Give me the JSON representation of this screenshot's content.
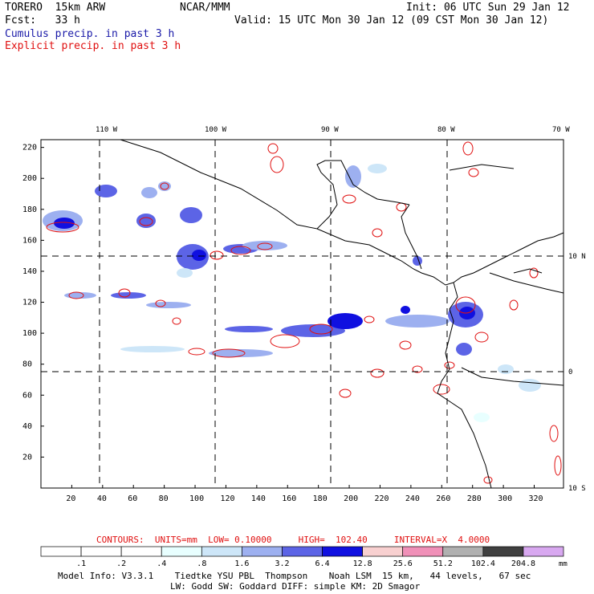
{
  "header": {
    "line1_left": "TORERO  15km ARW",
    "line1_mid": "NCAR/MMM",
    "line1_right": "Init: 06 UTC Sun 29 Jan 12",
    "line2_left": "Fcst:   33 h",
    "line2_right": "Valid: 15 UTC Mon 30 Jan 12 (09 CST Mon 30 Jan 12)",
    "legend_cumulus": "Cumulus precip. in past 3 h",
    "legend_explicit": "Explicit precip. in past 3 h",
    "cumulus_color": "#1a1aa8",
    "explicit_color": "#e01010"
  },
  "map": {
    "lon_labels": [
      "110 W",
      "100 W",
      "90 W",
      "80 W",
      "70 W"
    ],
    "lat_labels_right": [
      "10 N",
      "0",
      "10 S"
    ],
    "y_ticks": [
      "220",
      "200",
      "180",
      "160",
      "140",
      "120",
      "100",
      "80",
      "60",
      "40",
      "20"
    ],
    "x_ticks": [
      "20",
      "40",
      "60",
      "80",
      "100",
      "120",
      "140",
      "160",
      "180",
      "200",
      "220",
      "240",
      "260",
      "280",
      "300",
      "320"
    ]
  },
  "contours_line": {
    "label": "CONTOURS:  UNITS=mm  LOW= 0.10000     HIGH=  102.40     INTERVAL=X  4.0000"
  },
  "colorbar": {
    "labels": [
      ".1",
      ".2",
      ".4",
      ".8",
      "1.6",
      "3.2",
      "6.4",
      "12.8",
      "25.6",
      "51.2",
      "102.4",
      "204.8"
    ],
    "unit": "mm",
    "colors": [
      "#ffffff",
      "#ffffff",
      "#ffffff",
      "#e8ffff",
      "#cde6f8",
      "#9db0f0",
      "#5c64e6",
      "#1010e0",
      "#f8d0d0",
      "#f090b8",
      "#b0b0b0",
      "#404040",
      "#d8a8f0"
    ]
  },
  "footer": {
    "line1": "Model Info: V3.3.1    Tiedtke YSU PBL  Thompson    Noah LSM  15 km,   44 levels,   67 sec",
    "line2": "LW: Godd SW: Goddard DIFF: simple KM: 2D Smagor"
  }
}
